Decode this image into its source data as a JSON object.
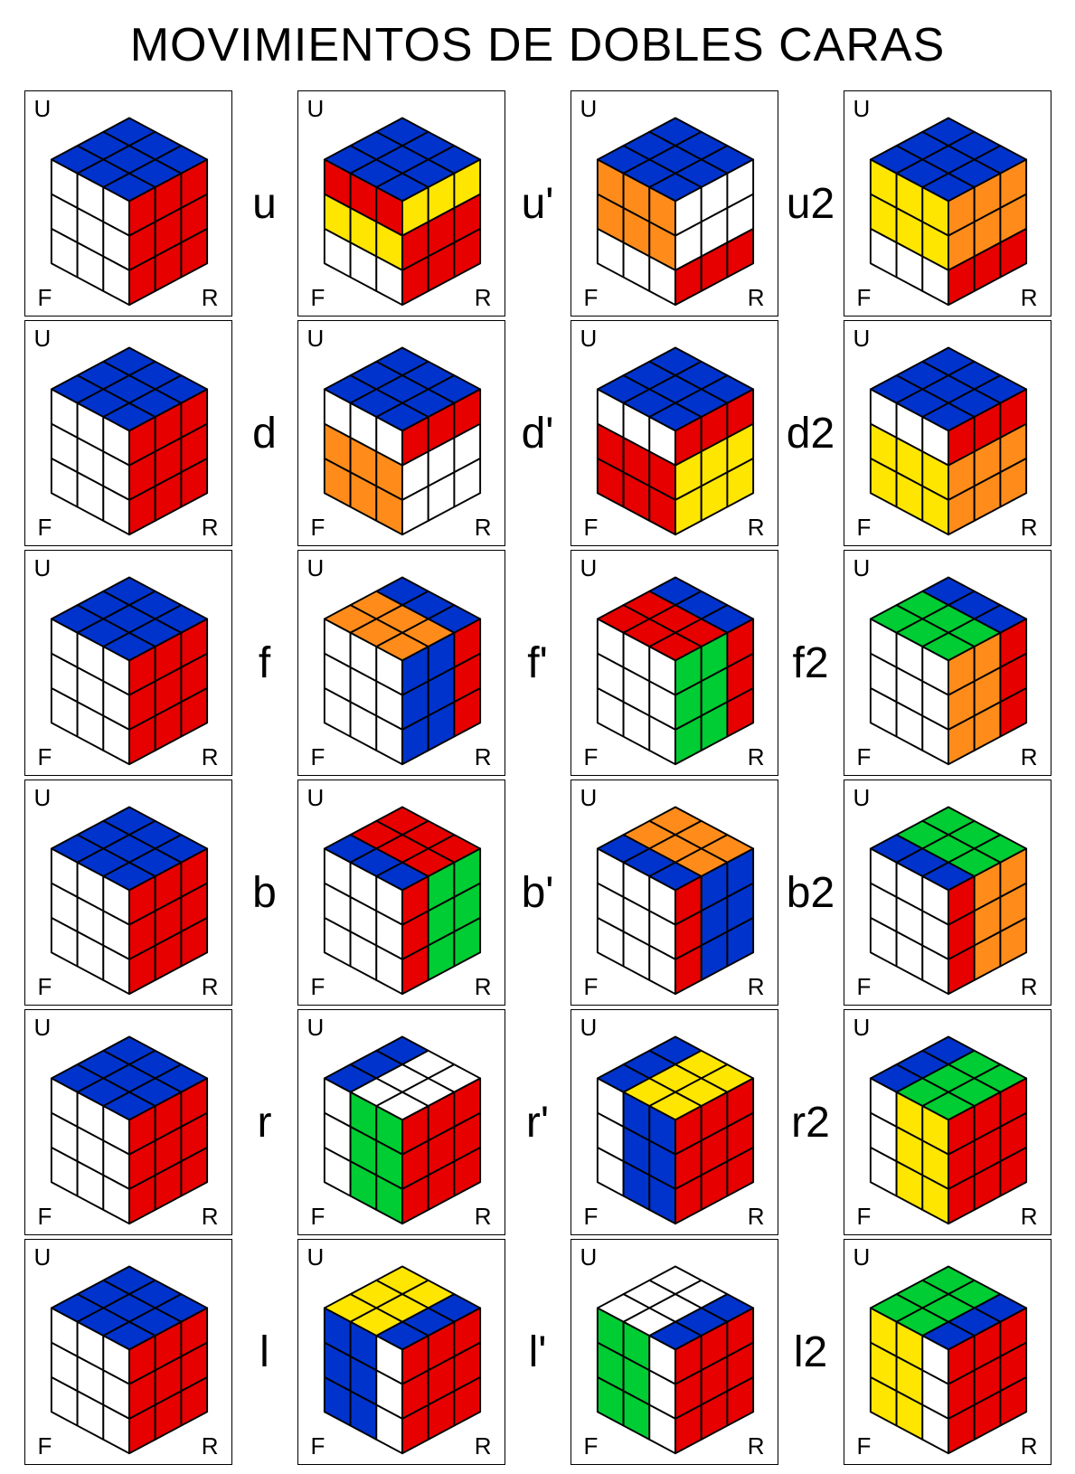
{
  "title": "MOVIMIENTOS DE DOBLES CARAS",
  "face_labels": {
    "U": "U",
    "F": "F",
    "R": "R"
  },
  "colors": {
    "W": "#ffffff",
    "B": "#0033cc",
    "R": "#e60000",
    "O": "#ff8c1a",
    "Y": "#ffe600",
    "G": "#00cc33",
    "stroke": "#000000"
  },
  "stroke_width": 2,
  "rows": [
    {
      "moves": [
        "",
        "u",
        "u'",
        "u2"
      ],
      "cubes": [
        {
          "U": [
            "B",
            "B",
            "B",
            "B",
            "B",
            "B",
            "B",
            "B",
            "B"
          ],
          "F": [
            "W",
            "W",
            "W",
            "W",
            "W",
            "W",
            "W",
            "W",
            "W"
          ],
          "R": [
            "R",
            "R",
            "R",
            "R",
            "R",
            "R",
            "R",
            "R",
            "R"
          ]
        },
        {
          "U": [
            "B",
            "B",
            "B",
            "B",
            "B",
            "B",
            "B",
            "B",
            "B"
          ],
          "F": [
            "R",
            "R",
            "R",
            "Y",
            "Y",
            "Y",
            "W",
            "W",
            "W"
          ],
          "R": [
            "Y",
            "Y",
            "Y",
            "R",
            "R",
            "R",
            "R",
            "R",
            "R"
          ]
        },
        {
          "U": [
            "B",
            "B",
            "B",
            "B",
            "B",
            "B",
            "B",
            "B",
            "B"
          ],
          "F": [
            "O",
            "O",
            "O",
            "O",
            "O",
            "O",
            "W",
            "W",
            "W"
          ],
          "R": [
            "W",
            "W",
            "W",
            "W",
            "W",
            "W",
            "R",
            "R",
            "R"
          ]
        },
        {
          "U": [
            "B",
            "B",
            "B",
            "B",
            "B",
            "B",
            "B",
            "B",
            "B"
          ],
          "F": [
            "Y",
            "Y",
            "Y",
            "Y",
            "Y",
            "Y",
            "W",
            "W",
            "W"
          ],
          "R": [
            "O",
            "O",
            "O",
            "O",
            "O",
            "O",
            "R",
            "R",
            "R"
          ]
        }
      ]
    },
    {
      "moves": [
        "",
        "d",
        "d'",
        "d2"
      ],
      "cubes": [
        {
          "U": [
            "B",
            "B",
            "B",
            "B",
            "B",
            "B",
            "B",
            "B",
            "B"
          ],
          "F": [
            "W",
            "W",
            "W",
            "W",
            "W",
            "W",
            "W",
            "W",
            "W"
          ],
          "R": [
            "R",
            "R",
            "R",
            "R",
            "R",
            "R",
            "R",
            "R",
            "R"
          ]
        },
        {
          "U": [
            "B",
            "B",
            "B",
            "B",
            "B",
            "B",
            "B",
            "B",
            "B"
          ],
          "F": [
            "W",
            "W",
            "W",
            "O",
            "O",
            "O",
            "O",
            "O",
            "O"
          ],
          "R": [
            "R",
            "R",
            "R",
            "W",
            "W",
            "W",
            "W",
            "W",
            "W"
          ]
        },
        {
          "U": [
            "B",
            "B",
            "B",
            "B",
            "B",
            "B",
            "B",
            "B",
            "B"
          ],
          "F": [
            "W",
            "W",
            "W",
            "R",
            "R",
            "R",
            "R",
            "R",
            "R"
          ],
          "R": [
            "R",
            "R",
            "R",
            "Y",
            "Y",
            "Y",
            "Y",
            "Y",
            "Y"
          ]
        },
        {
          "U": [
            "B",
            "B",
            "B",
            "B",
            "B",
            "B",
            "B",
            "B",
            "B"
          ],
          "F": [
            "W",
            "W",
            "W",
            "Y",
            "Y",
            "Y",
            "Y",
            "Y",
            "Y"
          ],
          "R": [
            "R",
            "R",
            "R",
            "O",
            "O",
            "O",
            "O",
            "O",
            "O"
          ]
        }
      ]
    },
    {
      "moves": [
        "",
        "f",
        "f'",
        "f2"
      ],
      "cubes": [
        {
          "U": [
            "B",
            "B",
            "B",
            "B",
            "B",
            "B",
            "B",
            "B",
            "B"
          ],
          "F": [
            "W",
            "W",
            "W",
            "W",
            "W",
            "W",
            "W",
            "W",
            "W"
          ],
          "R": [
            "R",
            "R",
            "R",
            "R",
            "R",
            "R",
            "R",
            "R",
            "R"
          ]
        },
        {
          "U": [
            "B",
            "B",
            "B",
            "O",
            "O",
            "O",
            "O",
            "O",
            "O"
          ],
          "F": [
            "W",
            "W",
            "W",
            "W",
            "W",
            "W",
            "W",
            "W",
            "W"
          ],
          "R": [
            "B",
            "B",
            "R",
            "B",
            "B",
            "R",
            "B",
            "B",
            "R"
          ]
        },
        {
          "U": [
            "B",
            "B",
            "B",
            "R",
            "R",
            "R",
            "R",
            "R",
            "R"
          ],
          "F": [
            "W",
            "W",
            "W",
            "W",
            "W",
            "W",
            "W",
            "W",
            "W"
          ],
          "R": [
            "G",
            "G",
            "R",
            "G",
            "G",
            "R",
            "G",
            "G",
            "R"
          ]
        },
        {
          "U": [
            "B",
            "B",
            "B",
            "G",
            "G",
            "G",
            "G",
            "G",
            "G"
          ],
          "F": [
            "W",
            "W",
            "W",
            "W",
            "W",
            "W",
            "W",
            "W",
            "W"
          ],
          "R": [
            "O",
            "O",
            "R",
            "O",
            "O",
            "R",
            "O",
            "O",
            "R"
          ]
        }
      ]
    },
    {
      "moves": [
        "",
        "b",
        "b'",
        "b2"
      ],
      "cubes": [
        {
          "U": [
            "B",
            "B",
            "B",
            "B",
            "B",
            "B",
            "B",
            "B",
            "B"
          ],
          "F": [
            "W",
            "W",
            "W",
            "W",
            "W",
            "W",
            "W",
            "W",
            "W"
          ],
          "R": [
            "R",
            "R",
            "R",
            "R",
            "R",
            "R",
            "R",
            "R",
            "R"
          ]
        },
        {
          "U": [
            "R",
            "R",
            "R",
            "R",
            "R",
            "R",
            "B",
            "B",
            "B"
          ],
          "F": [
            "W",
            "W",
            "W",
            "W",
            "W",
            "W",
            "W",
            "W",
            "W"
          ],
          "R": [
            "R",
            "G",
            "G",
            "R",
            "G",
            "G",
            "R",
            "G",
            "G"
          ]
        },
        {
          "U": [
            "O",
            "O",
            "O",
            "O",
            "O",
            "O",
            "B",
            "B",
            "B"
          ],
          "F": [
            "W",
            "W",
            "W",
            "W",
            "W",
            "W",
            "W",
            "W",
            "W"
          ],
          "R": [
            "R",
            "B",
            "B",
            "R",
            "B",
            "B",
            "R",
            "B",
            "B"
          ]
        },
        {
          "U": [
            "G",
            "G",
            "G",
            "G",
            "G",
            "G",
            "B",
            "B",
            "B"
          ],
          "F": [
            "W",
            "W",
            "W",
            "W",
            "W",
            "W",
            "W",
            "W",
            "W"
          ],
          "R": [
            "R",
            "O",
            "O",
            "R",
            "O",
            "O",
            "R",
            "O",
            "O"
          ]
        }
      ]
    },
    {
      "moves": [
        "",
        "r",
        "r'",
        "r2"
      ],
      "cubes": [
        {
          "U": [
            "B",
            "B",
            "B",
            "B",
            "B",
            "B",
            "B",
            "B",
            "B"
          ],
          "F": [
            "W",
            "W",
            "W",
            "W",
            "W",
            "W",
            "W",
            "W",
            "W"
          ],
          "R": [
            "R",
            "R",
            "R",
            "R",
            "R",
            "R",
            "R",
            "R",
            "R"
          ]
        },
        {
          "U": [
            "B",
            "W",
            "W",
            "B",
            "W",
            "W",
            "B",
            "W",
            "W"
          ],
          "F": [
            "W",
            "G",
            "G",
            "W",
            "G",
            "G",
            "W",
            "G",
            "G"
          ],
          "R": [
            "R",
            "R",
            "R",
            "R",
            "R",
            "R",
            "R",
            "R",
            "R"
          ]
        },
        {
          "U": [
            "B",
            "Y",
            "Y",
            "B",
            "Y",
            "Y",
            "B",
            "Y",
            "Y"
          ],
          "F": [
            "W",
            "B",
            "B",
            "W",
            "B",
            "B",
            "W",
            "B",
            "B"
          ],
          "R": [
            "R",
            "R",
            "R",
            "R",
            "R",
            "R",
            "R",
            "R",
            "R"
          ]
        },
        {
          "U": [
            "B",
            "G",
            "G",
            "B",
            "G",
            "G",
            "B",
            "G",
            "G"
          ],
          "F": [
            "W",
            "Y",
            "Y",
            "W",
            "Y",
            "Y",
            "W",
            "Y",
            "Y"
          ],
          "R": [
            "R",
            "R",
            "R",
            "R",
            "R",
            "R",
            "R",
            "R",
            "R"
          ]
        }
      ]
    },
    {
      "moves": [
        "",
        "l",
        "l'",
        "l2"
      ],
      "cubes": [
        {
          "U": [
            "B",
            "B",
            "B",
            "B",
            "B",
            "B",
            "B",
            "B",
            "B"
          ],
          "F": [
            "W",
            "W",
            "W",
            "W",
            "W",
            "W",
            "W",
            "W",
            "W"
          ],
          "R": [
            "R",
            "R",
            "R",
            "R",
            "R",
            "R",
            "R",
            "R",
            "R"
          ]
        },
        {
          "U": [
            "Y",
            "Y",
            "B",
            "Y",
            "Y",
            "B",
            "Y",
            "Y",
            "B"
          ],
          "F": [
            "B",
            "B",
            "W",
            "B",
            "B",
            "W",
            "B",
            "B",
            "W"
          ],
          "R": [
            "R",
            "R",
            "R",
            "R",
            "R",
            "R",
            "R",
            "R",
            "R"
          ]
        },
        {
          "U": [
            "W",
            "W",
            "B",
            "W",
            "W",
            "B",
            "W",
            "W",
            "B"
          ],
          "F": [
            "G",
            "G",
            "W",
            "G",
            "G",
            "W",
            "G",
            "G",
            "W"
          ],
          "R": [
            "R",
            "R",
            "R",
            "R",
            "R",
            "R",
            "R",
            "R",
            "R"
          ]
        },
        {
          "U": [
            "G",
            "G",
            "B",
            "G",
            "G",
            "B",
            "G",
            "G",
            "B"
          ],
          "F": [
            "Y",
            "Y",
            "W",
            "Y",
            "Y",
            "W",
            "Y",
            "Y",
            "W"
          ],
          "R": [
            "R",
            "R",
            "R",
            "R",
            "R",
            "R",
            "R",
            "R",
            "R"
          ]
        }
      ]
    }
  ]
}
